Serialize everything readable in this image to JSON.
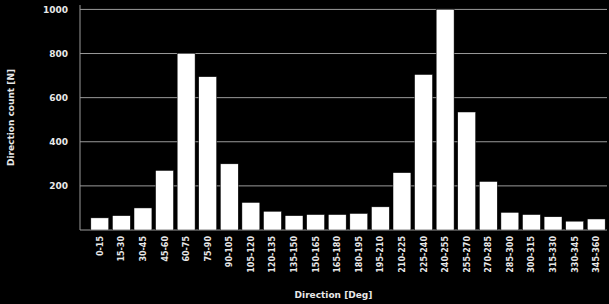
{
  "chart_data": {
    "type": "bar",
    "x_label": "Direction [Deg]",
    "y_label": "Direction count [N]",
    "categories": [
      "0-15",
      "15-30",
      "30-45",
      "45-60",
      "60-75",
      "75-90",
      "90-105",
      "105-120",
      "120-135",
      "135-150",
      "150-165",
      "165-180",
      "180-195",
      "195-210",
      "210-225",
      "225-240",
      "240-255",
      "255-270",
      "270-285",
      "285-300",
      "300-315",
      "315-330",
      "330-345",
      "345-360"
    ],
    "values": [
      55,
      65,
      100,
      270,
      800,
      695,
      300,
      125,
      85,
      65,
      70,
      70,
      75,
      105,
      260,
      705,
      1000,
      535,
      220,
      80,
      70,
      60,
      40,
      50
    ],
    "color": "#ffffff",
    "ylim": [
      0,
      1020
    ],
    "yticks": [
      200,
      400,
      600,
      800,
      1000
    ],
    "grid": true
  }
}
